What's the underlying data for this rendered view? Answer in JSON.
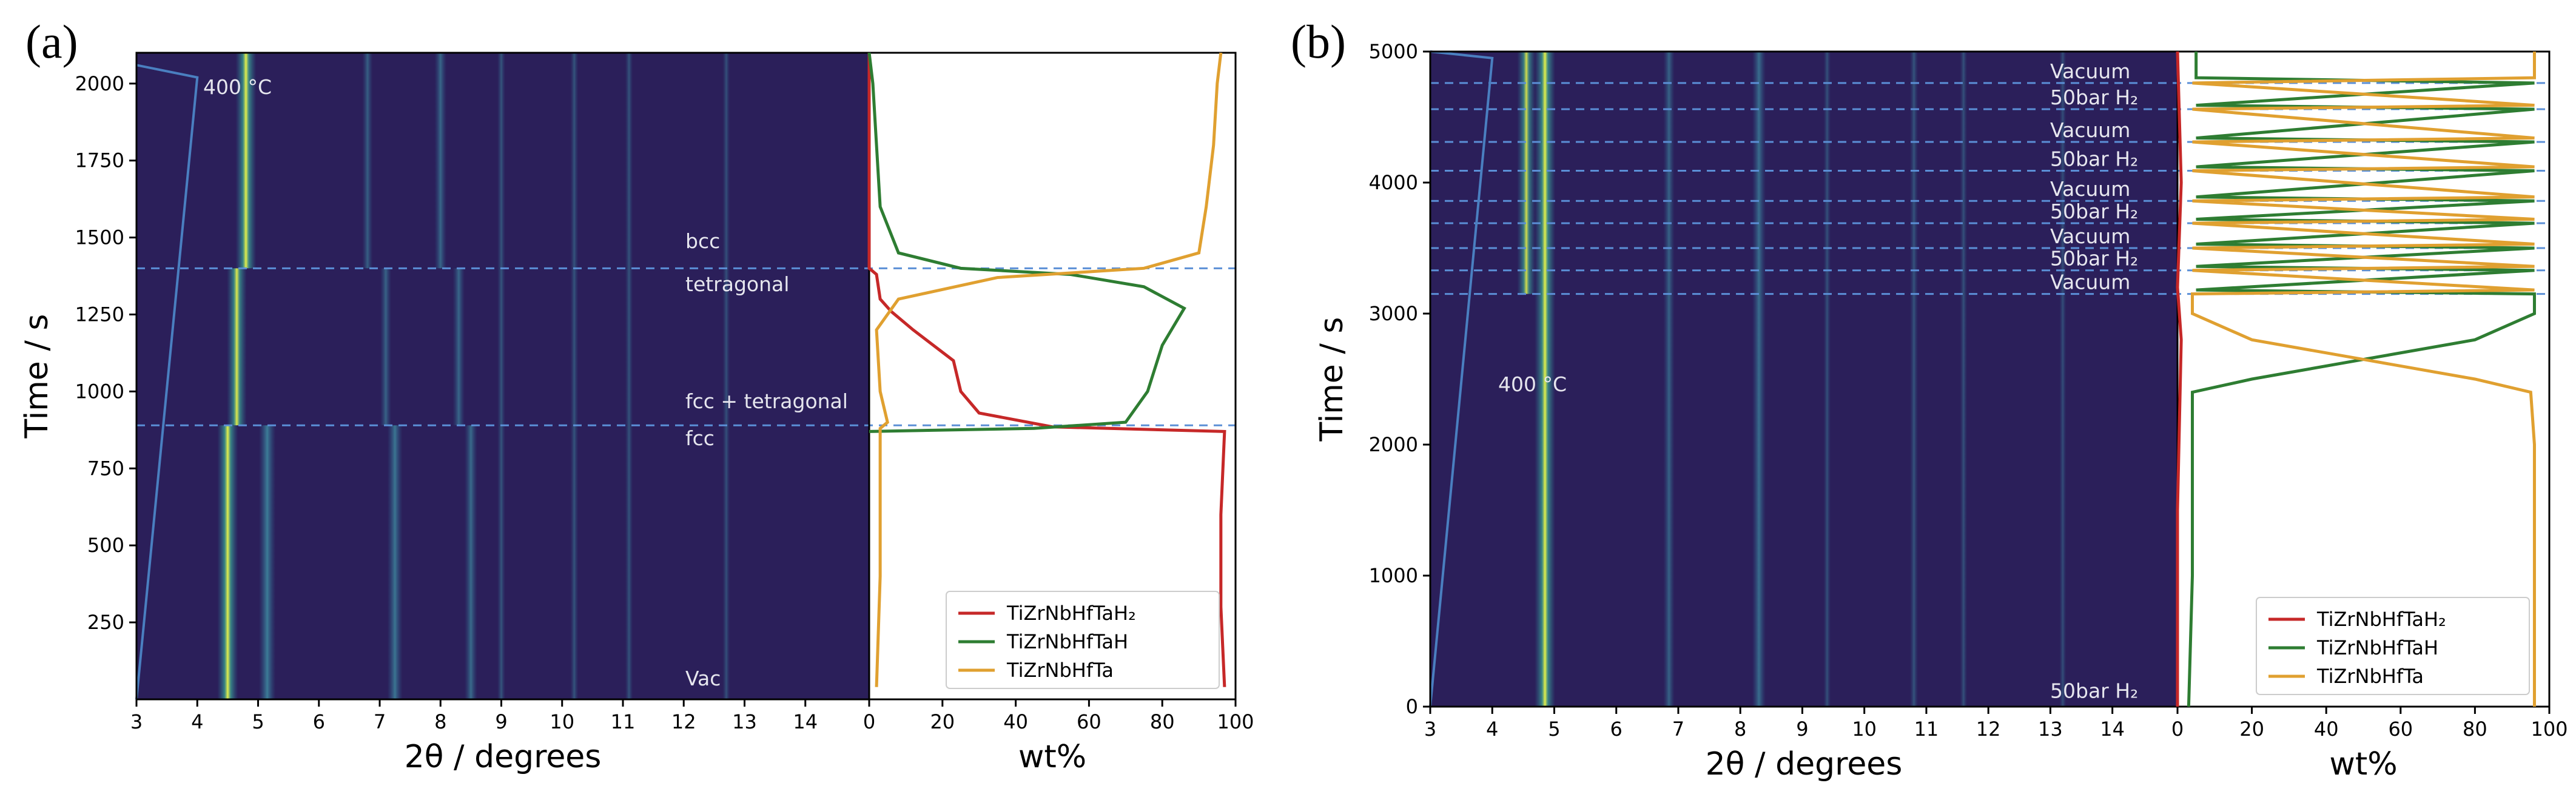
{
  "chart_data": [
    {
      "panel": "(a)",
      "type": "heatmap",
      "xlabel": "2θ / degrees",
      "ylabel": "Time / s",
      "xlim": [
        3,
        15.05
      ],
      "ylim": [
        0,
        2100
      ],
      "xticks": [
        "3",
        "4",
        "5",
        "6",
        "7",
        "8",
        "9",
        "10",
        "11",
        "12",
        "13",
        "14"
      ],
      "yticks": [
        250,
        500,
        750,
        1000,
        1250,
        1500,
        1750,
        2000
      ],
      "temp_label": "400 °C",
      "temp_profile": [
        [
          3,
          0
        ],
        [
          4,
          2020
        ],
        [
          3,
          2060
        ]
      ],
      "dashed_lines": [
        1400,
        890
      ],
      "phase_labels": [
        {
          "text": "bcc",
          "y": 1450
        },
        {
          "text": "tetragonal",
          "y": 1310
        },
        {
          "text": "fcc + tetragonal",
          "y": 930
        },
        {
          "text": "fcc",
          "y": 810
        },
        {
          "text": "Vac",
          "y": 30
        }
      ],
      "peaks": [
        {
          "x": 4.5,
          "t0": 0,
          "t1": 890,
          "strength": 1.0
        },
        {
          "x": 4.8,
          "t0": 1400,
          "t1": 2100,
          "strength": 1.0
        },
        {
          "x": 4.65,
          "t0": 890,
          "t1": 1400,
          "strength": 0.95
        },
        {
          "x": 5.15,
          "t0": 0,
          "t1": 890,
          "strength": 0.75
        },
        {
          "x": 7.25,
          "t0": 0,
          "t1": 890,
          "strength": 0.65
        },
        {
          "x": 8.5,
          "t0": 0,
          "t1": 890,
          "strength": 0.5
        },
        {
          "x": 7.1,
          "t0": 890,
          "t1": 1400,
          "strength": 0.4
        },
        {
          "x": 8.3,
          "t0": 890,
          "t1": 1400,
          "strength": 0.45
        },
        {
          "x": 6.8,
          "t0": 1400,
          "t1": 2100,
          "strength": 0.35
        },
        {
          "x": 8.0,
          "t0": 1400,
          "t1": 2100,
          "strength": 0.45
        },
        {
          "x": 9.0,
          "t0": 0,
          "t1": 2100,
          "strength": 0.2
        },
        {
          "x": 10.2,
          "t0": 0,
          "t1": 2100,
          "strength": 0.2
        },
        {
          "x": 11.1,
          "t0": 0,
          "t1": 2100,
          "strength": 0.18
        },
        {
          "x": 12.7,
          "t0": 0,
          "t1": 2100,
          "strength": 0.15
        }
      ],
      "wt_panel": {
        "xlabel": "wt%",
        "xlim": [
          0,
          100
        ],
        "xticks": [
          "0",
          "20",
          "40",
          "60",
          "80",
          "100"
        ],
        "legend": [
          "TiZrNbHfTaH₂",
          "TiZrNbHfTaH",
          "TiZrNbHfTa"
        ],
        "series": [
          {
            "name": "TiZrNbHfTaH₂",
            "color": "#c62828",
            "points": [
              [
                97,
                40
              ],
              [
                96,
                300
              ],
              [
                96,
                600
              ],
              [
                97,
                870
              ],
              [
                50,
                885
              ],
              [
                30,
                930
              ],
              [
                25,
                1000
              ],
              [
                23,
                1100
              ],
              [
                12,
                1200
              ],
              [
                6,
                1260
              ],
              [
                3,
                1300
              ],
              [
                2,
                1380
              ],
              [
                0,
                1400
              ],
              [
                0,
                2100
              ]
            ]
          },
          {
            "name": "TiZrNbHfTaH",
            "color": "#2e7d32",
            "points": [
              [
                0,
                870
              ],
              [
                45,
                880
              ],
              [
                70,
                900
              ],
              [
                76,
                1000
              ],
              [
                80,
                1150
              ],
              [
                86,
                1270
              ],
              [
                75,
                1340
              ],
              [
                55,
                1380
              ],
              [
                25,
                1400
              ],
              [
                8,
                1450
              ],
              [
                3,
                1600
              ],
              [
                2,
                1800
              ],
              [
                1,
                2000
              ],
              [
                0,
                2100
              ]
            ]
          },
          {
            "name": "TiZrNbHfTa",
            "color": "#e0a030",
            "points": [
              [
                2,
                40
              ],
              [
                3,
                400
              ],
              [
                3,
                800
              ],
              [
                3,
                880
              ],
              [
                5,
                900
              ],
              [
                3,
                1000
              ],
              [
                2,
                1200
              ],
              [
                8,
                1300
              ],
              [
                35,
                1370
              ],
              [
                75,
                1400
              ],
              [
                90,
                1450
              ],
              [
                92,
                1600
              ],
              [
                94,
                1800
              ],
              [
                95,
                2000
              ],
              [
                96,
                2100
              ]
            ]
          }
        ]
      }
    },
    {
      "panel": "(b)",
      "type": "heatmap",
      "xlabel": "2θ / degrees",
      "ylabel": "Time / s",
      "xlim": [
        3,
        15.05
      ],
      "ylim": [
        0,
        5000
      ],
      "xticks": [
        "3",
        "4",
        "5",
        "6",
        "7",
        "8",
        "9",
        "10",
        "11",
        "12",
        "13",
        "14"
      ],
      "yticks": [
        "0",
        "1000",
        "2000",
        "3000",
        "4000",
        "5000"
      ],
      "temp_label": "400 °C",
      "temp_profile": [
        [
          3,
          0
        ],
        [
          4,
          4950
        ],
        [
          3,
          5000
        ]
      ],
      "dashed_lines": [
        4760,
        4560,
        4310,
        4090,
        3860,
        3690,
        3500,
        3330,
        3150
      ],
      "phase_labels": [
        {
          "text": "Vacuum",
          "y": 4760
        },
        {
          "text": "50bar H₂",
          "y": 4560
        },
        {
          "text": "Vacuum",
          "y": 4310
        },
        {
          "text": "50bar H₂",
          "y": 4090
        },
        {
          "text": "Vacuum",
          "y": 3860
        },
        {
          "text": "50bar H₂",
          "y": 3690
        },
        {
          "text": "Vacuum",
          "y": 3500
        },
        {
          "text": "50bar H₂",
          "y": 3330
        },
        {
          "text": "Vacuum",
          "y": 3150
        },
        {
          "text": "50bar H₂",
          "y": 30
        }
      ],
      "peaks": [
        {
          "x": 4.85,
          "t0": 0,
          "t1": 5000,
          "strength": 1.0
        },
        {
          "x": 4.55,
          "t0": 3150,
          "t1": 5000,
          "strength": 0.85
        },
        {
          "x": 6.85,
          "t0": 0,
          "t1": 5000,
          "strength": 0.4
        },
        {
          "x": 8.3,
          "t0": 0,
          "t1": 5000,
          "strength": 0.55
        },
        {
          "x": 9.4,
          "t0": 0,
          "t1": 5000,
          "strength": 0.15
        },
        {
          "x": 10.8,
          "t0": 0,
          "t1": 5000,
          "strength": 0.2
        },
        {
          "x": 11.6,
          "t0": 0,
          "t1": 5000,
          "strength": 0.15
        },
        {
          "x": 13.2,
          "t0": 0,
          "t1": 5000,
          "strength": 0.12
        }
      ],
      "wt_panel": {
        "xlabel": "wt%",
        "xlim": [
          0,
          100
        ],
        "xticks": [
          "0",
          "20",
          "40",
          "60",
          "80",
          "100"
        ],
        "legend": [
          "TiZrNbHfTaH₂",
          "TiZrNbHfTaH",
          "TiZrNbHfTa"
        ],
        "series": [
          {
            "name": "TiZrNbHfTaH₂",
            "color": "#c62828",
            "points": [
              [
                0,
                0
              ],
              [
                0,
                1500
              ],
              [
                1,
                2800
              ],
              [
                0,
                3200
              ],
              [
                1,
                4000
              ],
              [
                0,
                5000
              ]
            ]
          },
          {
            "name": "TiZrNbHfTaH",
            "color": "#2e7d32",
            "points": [
              [
                3,
                0
              ],
              [
                4,
                1000
              ],
              [
                4,
                2000
              ],
              [
                4,
                2400
              ],
              [
                20,
                2500
              ],
              [
                50,
                2650
              ],
              [
                80,
                2800
              ],
              [
                96,
                3000
              ],
              [
                96,
                3150
              ],
              [
                5,
                3180
              ],
              [
                96,
                3330
              ],
              [
                5,
                3360
              ],
              [
                96,
                3500
              ],
              [
                5,
                3530
              ],
              [
                96,
                3690
              ],
              [
                5,
                3720
              ],
              [
                96,
                3860
              ],
              [
                5,
                3890
              ],
              [
                96,
                4090
              ],
              [
                5,
                4120
              ],
              [
                96,
                4310
              ],
              [
                5,
                4340
              ],
              [
                96,
                4560
              ],
              [
                5,
                4590
              ],
              [
                96,
                4760
              ],
              [
                5,
                4800
              ],
              [
                5,
                5000
              ]
            ]
          },
          {
            "name": "TiZrNbHfTa",
            "color": "#e0a030",
            "points": [
              [
                96,
                0
              ],
              [
                96,
                1000
              ],
              [
                96,
                2000
              ],
              [
                95,
                2400
              ],
              [
                80,
                2500
              ],
              [
                50,
                2650
              ],
              [
                20,
                2800
              ],
              [
                4,
                3000
              ],
              [
                4,
                3150
              ],
              [
                96,
                3180
              ],
              [
                4,
                3330
              ],
              [
                96,
                3360
              ],
              [
                4,
                3500
              ],
              [
                96,
                3530
              ],
              [
                4,
                3690
              ],
              [
                96,
                3720
              ],
              [
                4,
                3860
              ],
              [
                96,
                3890
              ],
              [
                4,
                4090
              ],
              [
                96,
                4120
              ],
              [
                4,
                4310
              ],
              [
                96,
                4340
              ],
              [
                4,
                4560
              ],
              [
                96,
                4590
              ],
              [
                4,
                4760
              ],
              [
                96,
                4800
              ],
              [
                96,
                5000
              ]
            ]
          }
        ]
      }
    }
  ]
}
